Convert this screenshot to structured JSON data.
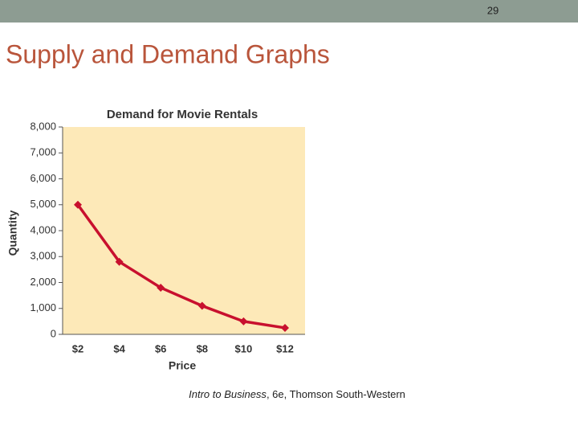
{
  "slide_number": "29",
  "slide_title": "Supply and Demand Graphs",
  "caption": {
    "title": "Intro to Business",
    "rest": ", 6e, Thomson South-Western"
  },
  "chart_data": {
    "type": "line",
    "title": "Demand for Movie Rentals",
    "x_label": "Price",
    "y_label": "Quantity",
    "categories": [
      "$2",
      "$4",
      "$6",
      "$8",
      "$10",
      "$12"
    ],
    "values": [
      5000,
      2800,
      1800,
      1100,
      500,
      250
    ],
    "color": "#c8102e",
    "background": "#fde9b8",
    "ylim": [
      0,
      8000
    ],
    "yticks": [
      0,
      {
        "value": 1000,
        "label": "1,000"
      },
      {
        "value": 2000,
        "label": "2,000"
      },
      {
        "value": 3000,
        "label": "3,000"
      },
      {
        "value": 4000,
        "label": "4,000"
      },
      {
        "value": 5000,
        "label": "5,000"
      },
      {
        "value": 6000,
        "label": "6,000"
      },
      {
        "value": 7000,
        "label": "7,000"
      },
      {
        "value": 8000,
        "label": "8,000"
      }
    ]
  }
}
